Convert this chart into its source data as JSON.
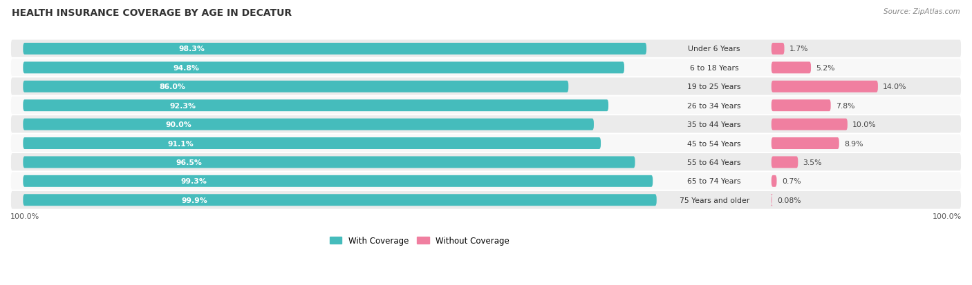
{
  "title": "HEALTH INSURANCE COVERAGE BY AGE IN DECATUR",
  "source": "Source: ZipAtlas.com",
  "categories": [
    "Under 6 Years",
    "6 to 18 Years",
    "19 to 25 Years",
    "26 to 34 Years",
    "35 to 44 Years",
    "45 to 54 Years",
    "55 to 64 Years",
    "65 to 74 Years",
    "75 Years and older"
  ],
  "with_coverage": [
    98.3,
    94.8,
    86.0,
    92.3,
    90.0,
    91.1,
    96.5,
    99.3,
    99.9
  ],
  "without_coverage": [
    1.7,
    5.2,
    14.0,
    7.8,
    10.0,
    8.9,
    3.5,
    0.7,
    0.08
  ],
  "with_coverage_labels": [
    "98.3%",
    "94.8%",
    "86.0%",
    "92.3%",
    "90.0%",
    "91.1%",
    "96.5%",
    "99.3%",
    "99.9%"
  ],
  "without_coverage_labels": [
    "1.7%",
    "5.2%",
    "14.0%",
    "7.8%",
    "10.0%",
    "8.9%",
    "3.5%",
    "0.7%",
    "0.08%"
  ],
  "color_with": "#45BCBC",
  "color_without": "#F07FA0",
  "color_with_light": "#A8DEDF",
  "color_without_light": "#F9C0D0",
  "bg_row_even": "#EBEBEB",
  "bg_row_odd": "#F8F8F8",
  "bar_height": 0.62,
  "figsize": [
    14.06,
    4.14
  ],
  "dpi": 100
}
